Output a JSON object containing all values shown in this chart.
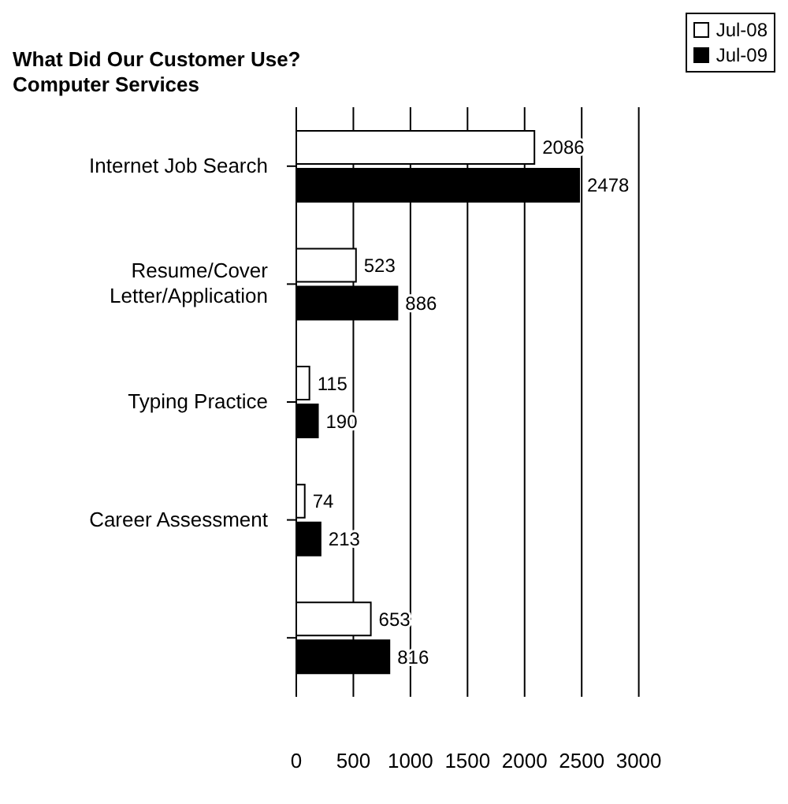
{
  "chart_data": {
    "type": "bar",
    "orientation": "horizontal",
    "title": "What Did Our Customer Use?",
    "subtitle": "Computer Services",
    "categories": [
      "Internet Job Search",
      "Resume/Cover Letter/Application",
      "Typing Practice",
      "Career Assessment",
      null
    ],
    "series": [
      {
        "name": "Jul-08",
        "color": "#ffffff",
        "values": [
          2086,
          523,
          115,
          74,
          653
        ]
      },
      {
        "name": "Jul-09",
        "color": "#000000",
        "values": [
          2478,
          886,
          190,
          213,
          816
        ]
      }
    ],
    "xlim": [
      0,
      3000
    ],
    "xticks": [
      0,
      500,
      1000,
      1500,
      2000,
      2500,
      3000
    ],
    "grid": "x",
    "legend": "top right",
    "data_labels": true
  }
}
